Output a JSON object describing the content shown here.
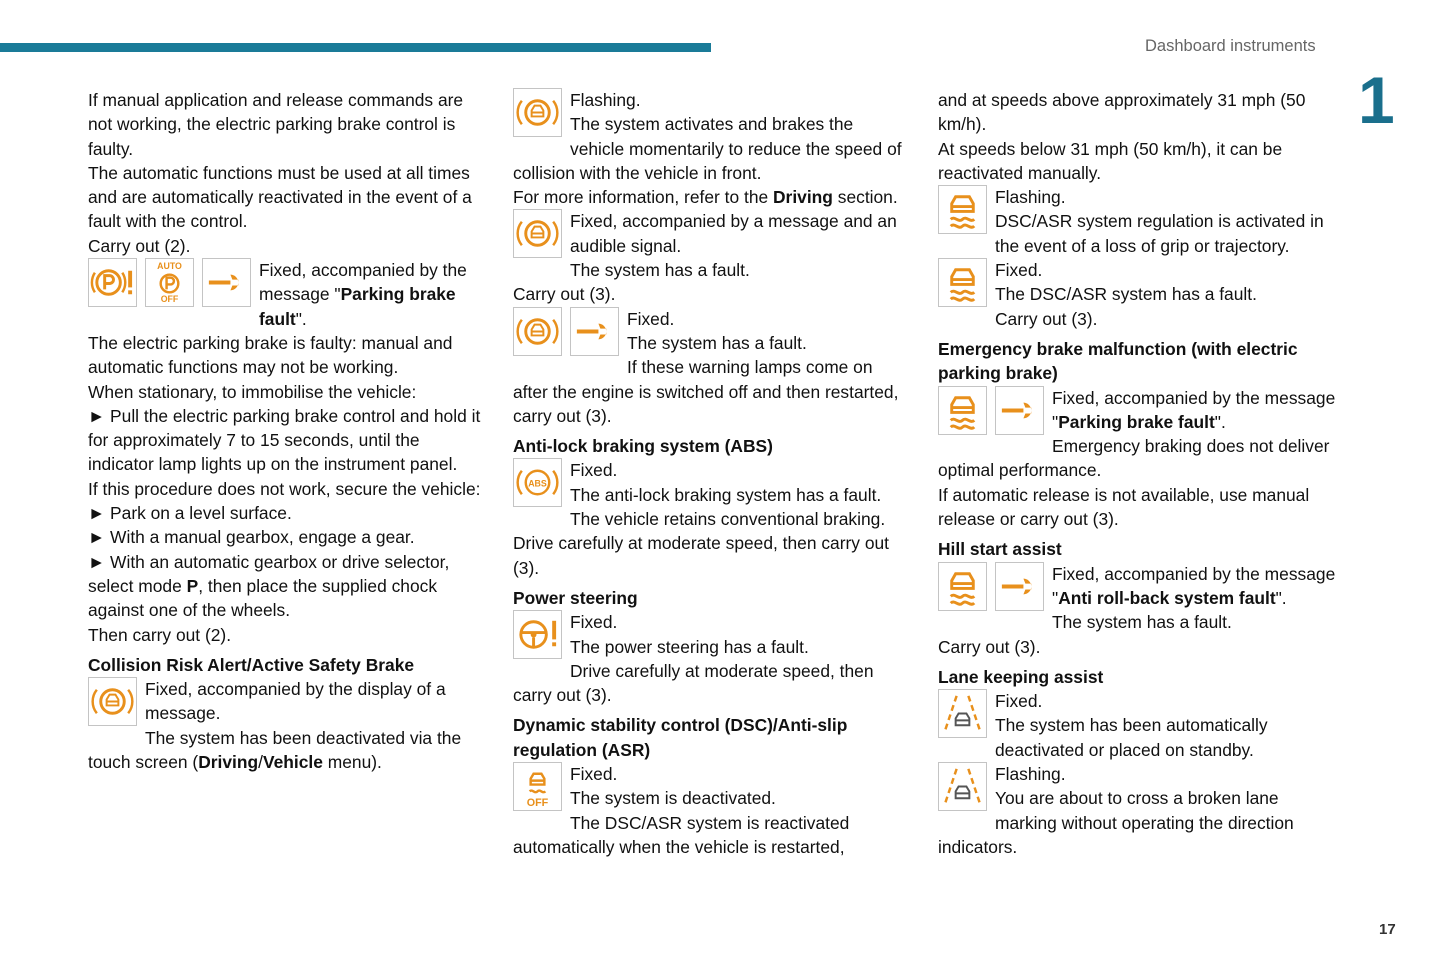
{
  "header": {
    "title": "Dashboard instruments",
    "chapter": "1",
    "page": "17"
  },
  "icons": {
    "auto": "AUTO",
    "off": "OFF",
    "abs": "ABS",
    "dsc_off": "OFF"
  },
  "col1": [
    "If manual application and release commands are not working, the electric parking brake control is faulty.",
    "The automatic functions must be used at all times and are automatically reactivated in the event of a fault with the control.",
    "Carry out (2).",
    "Fixed, accompanied by the message \"",
    "Parking brake fault",
    "\".",
    "The electric parking brake is faulty: manual and automatic functions may not be working.",
    "When stationary, to immobilise the vehicle:",
    "► Pull the electric parking brake control and hold it for approximately 7 to 15 seconds, until the indicator lamp lights up on the instrument panel.",
    "If this procedure does not work, secure the vehicle:",
    "► Park on a level surface.",
    "► With a manual gearbox, engage a gear.",
    "► With an automatic gearbox or drive selector, select mode ",
    "P",
    ", then place the supplied chock against one of the wheels.",
    "Then carry out (2).",
    "Collision Risk Alert/Active Safety Brake",
    "Fixed, accompanied by the display of a message.",
    "The system has been deactivated via the touch screen (",
    "Driving",
    "/",
    "Vehicle",
    " menu)."
  ],
  "col2": [
    "Flashing.",
    "The system activates and brakes the vehicle momentarily to reduce the speed of collision with the vehicle in front.",
    "For more information, refer to the ",
    "Driving",
    " section.",
    "Fixed, accompanied by a message and an audible signal.",
    "The system has a fault.",
    "Carry out (3).",
    "Fixed.",
    "The system has a fault.",
    "If these warning lamps come on after the engine is switched off and then restarted, carry out (3).",
    "Anti-lock braking system (ABS)",
    "Fixed.",
    "The anti-lock braking system has a fault.",
    "The vehicle retains conventional braking.",
    "Drive carefully at moderate speed, then carry out (3).",
    "Power steering",
    "Fixed.",
    "The power steering has a fault.",
    "Drive carefully at moderate speed, then carry out (3).",
    "Dynamic stability control (DSC)/Anti-slip regulation (ASR)",
    "Fixed.",
    "The system is deactivated.",
    "The DSC/ASR system is reactivated automatically when the vehicle is restarted,"
  ],
  "col3": [
    "and at speeds above approximately 31 mph (50 km/h).",
    "At speeds below 31 mph (50 km/h), it can be reactivated manually.",
    "Flashing.",
    "DSC/ASR system regulation is activated in the event of a loss of grip or trajectory.",
    "Fixed.",
    "The DSC/ASR system has a fault.",
    "Carry out (3).",
    "Emergency brake malfunction (with electric parking brake)",
    "Fixed, accompanied by the message \"",
    "Parking brake fault",
    "\".",
    "Emergency braking does not deliver optimal performance.",
    "If automatic release is not available, use manual release or carry out (3).",
    "Hill start assist",
    "Fixed, accompanied by the message \"",
    "Anti roll-back system fault",
    "\".",
    "The system has a fault.",
    "Carry out (3).",
    "Lane keeping assist",
    "Fixed.",
    "The system has been automatically deactivated or placed on standby.",
    "Flashing.",
    "You are about to cross a broken lane marking without operating the direction indicators."
  ]
}
